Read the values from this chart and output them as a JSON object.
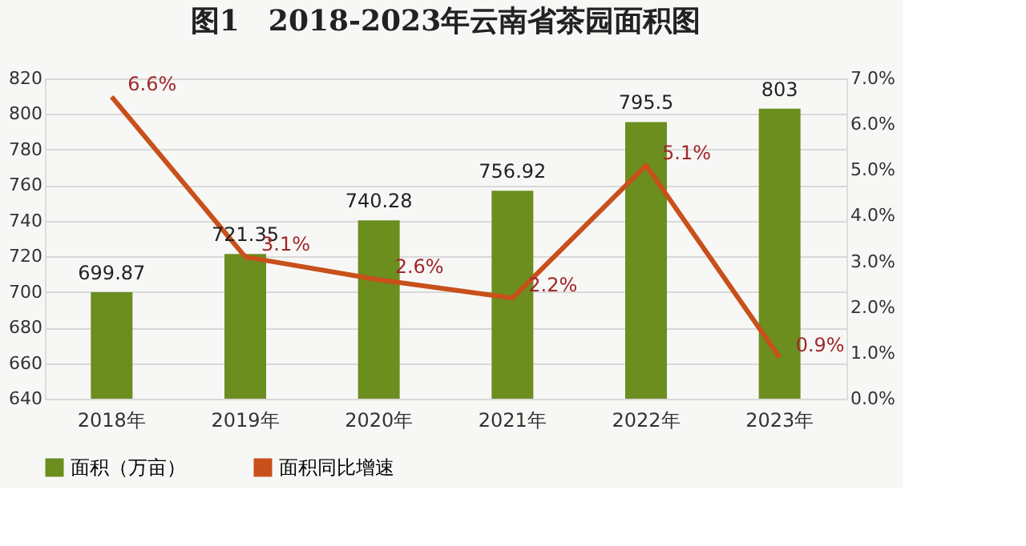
{
  "chart_data": {
    "type": "bar",
    "title": "图1　2018-2023年云南省茶园面积图",
    "categories": [
      "2018年",
      "2019年",
      "2020年",
      "2021年",
      "2022年",
      "2023年"
    ],
    "series": [
      {
        "name": "面积（万亩）",
        "color": "#6b8e1f",
        "values": [
          699.87,
          721.35,
          740.28,
          756.92,
          795.5,
          803
        ],
        "value_labels": [
          "699.87",
          "721.35",
          "740.28",
          "756.92",
          "795.5",
          "803"
        ]
      },
      {
        "name": "面积同比增速",
        "type": "line",
        "axis": "y2",
        "color": "#c8501a",
        "values": [
          6.6,
          3.1,
          2.6,
          2.2,
          5.1,
          0.9
        ],
        "value_labels": [
          "6.6%",
          "3.1%",
          "2.6%",
          "2.2%",
          "5.1%",
          "0.9%"
        ]
      }
    ],
    "ylim": [
      640,
      820
    ],
    "yticks": [
      640,
      660,
      680,
      700,
      720,
      740,
      760,
      780,
      800,
      820
    ],
    "y2lim": [
      0,
      7
    ],
    "y2ticks": [
      {
        "value": 0,
        "label": "0.0%"
      },
      {
        "value": 1,
        "label": "1.0%"
      },
      {
        "value": 2,
        "label": "2.0%"
      },
      {
        "value": 3,
        "label": "3.0%"
      },
      {
        "value": 4,
        "label": "4.0%"
      },
      {
        "value": 5,
        "label": "5.0%"
      },
      {
        "value": 6,
        "label": "6.0%"
      },
      {
        "value": 7,
        "label": "7.0%"
      }
    ],
    "grid": "y",
    "legend": "bottom"
  }
}
